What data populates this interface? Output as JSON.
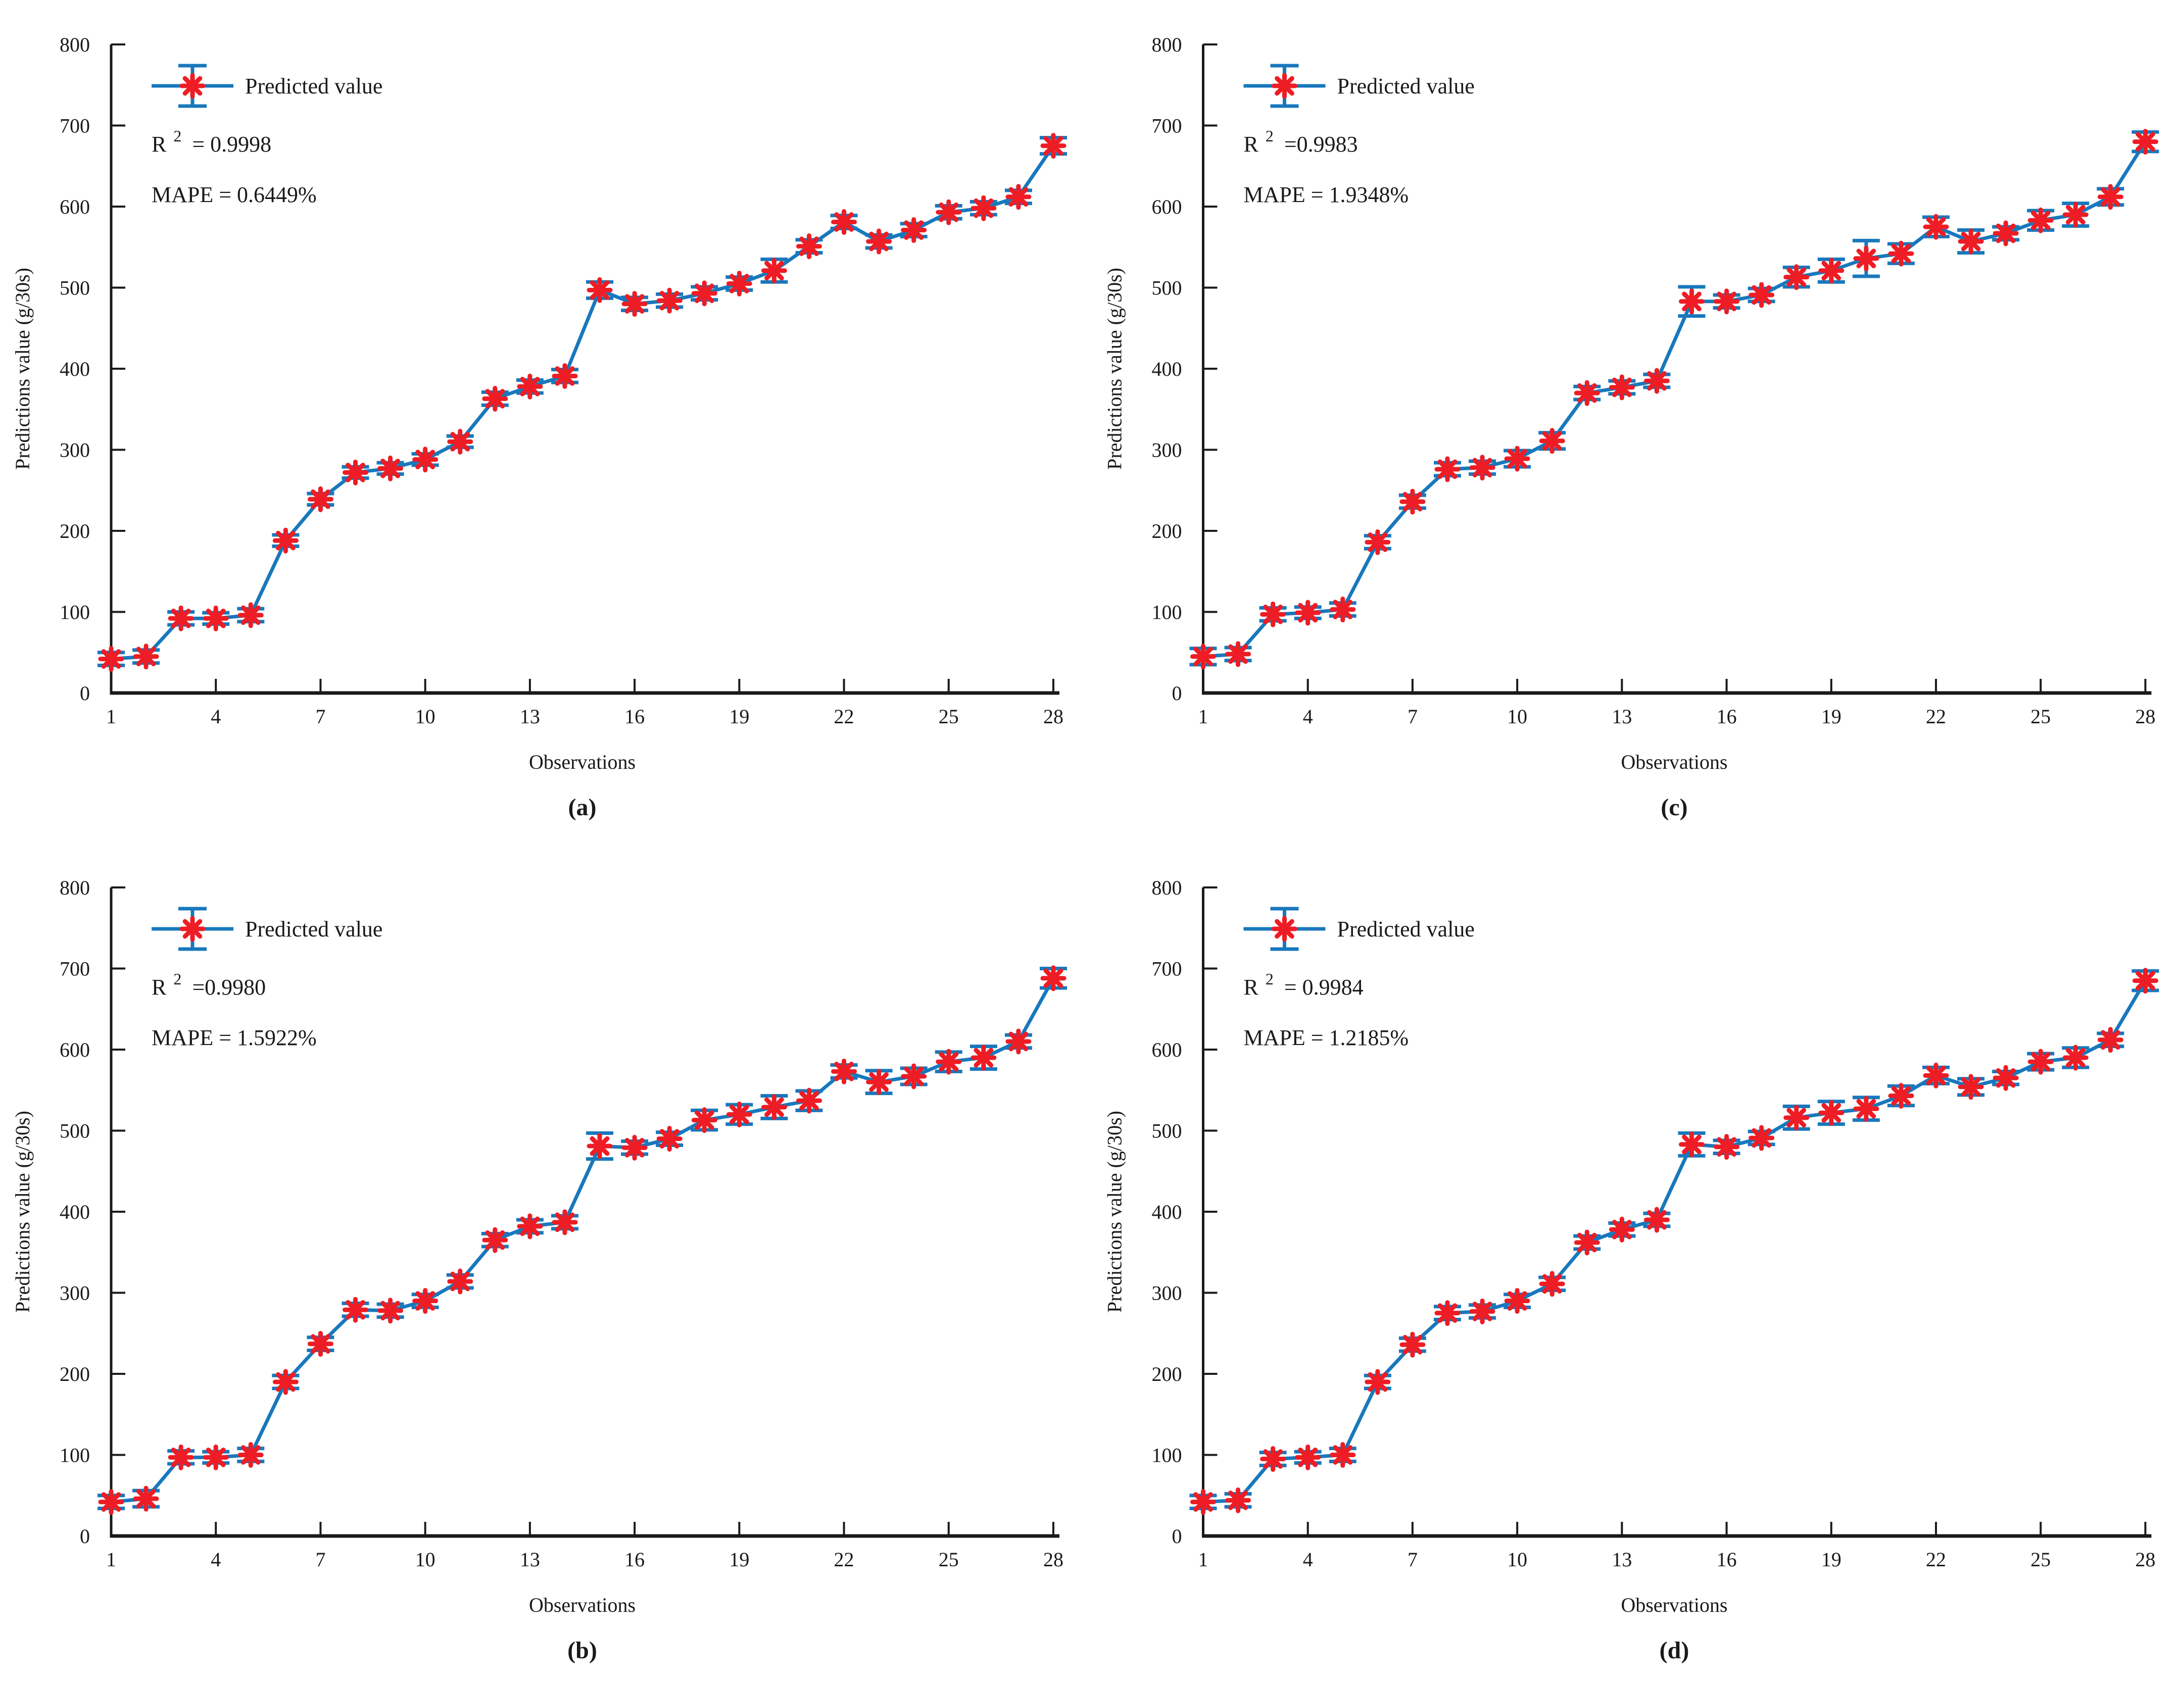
{
  "page": {
    "background": "#ffffff"
  },
  "colors": {
    "line_blue": "#1878bc",
    "marker_red": "#ee1c24",
    "axis_black": "#1a1a1a",
    "text_black": "#1a1a1a"
  },
  "chart_data": [
    {
      "type": "line",
      "panel_label": "(a)",
      "legend": "Predicted value",
      "r2_prefix": "R",
      "r2_sup": "2",
      "r2_suffix": " = 0.9998",
      "mape": "MAPE = 0.6449%",
      "xlabel": "Observations",
      "ylabel": "Predictions value (g/30s)",
      "xlim": [
        1,
        28
      ],
      "ylim": [
        0,
        800
      ],
      "x_ticks": [
        1,
        4,
        7,
        10,
        13,
        16,
        19,
        22,
        25,
        28
      ],
      "y_ticks": [
        0,
        100,
        200,
        300,
        400,
        500,
        600,
        700,
        800
      ],
      "x": [
        1,
        2,
        3,
        4,
        5,
        6,
        7,
        8,
        9,
        10,
        11,
        12,
        13,
        14,
        15,
        16,
        17,
        18,
        19,
        20,
        21,
        22,
        23,
        24,
        25,
        26,
        27,
        28
      ],
      "values": [
        42,
        45,
        92,
        92,
        96,
        188,
        239,
        272,
        277,
        288,
        310,
        363,
        378,
        391,
        497,
        480,
        484,
        493,
        505,
        521,
        551,
        581,
        557,
        571,
        593,
        598,
        612,
        675
      ],
      "errors": [
        8,
        8,
        8,
        7,
        8,
        7,
        7,
        7,
        7,
        7,
        7,
        8,
        8,
        8,
        10,
        8,
        8,
        8,
        8,
        14,
        8,
        8,
        8,
        8,
        8,
        8,
        8,
        10
      ]
    },
    {
      "type": "line",
      "panel_label": "(c)",
      "legend": "Predicted value",
      "r2_prefix": "R",
      "r2_sup": "2",
      "r2_suffix": " =0.9983",
      "mape": "MAPE = 1.9348%",
      "xlabel": "Observations",
      "ylabel": "Predictions value (g/30s)",
      "xlim": [
        1,
        28
      ],
      "ylim": [
        0,
        800
      ],
      "x_ticks": [
        1,
        4,
        7,
        10,
        13,
        16,
        19,
        22,
        25,
        28
      ],
      "y_ticks": [
        0,
        100,
        200,
        300,
        400,
        500,
        600,
        700,
        800
      ],
      "x": [
        1,
        2,
        3,
        4,
        5,
        6,
        7,
        8,
        9,
        10,
        11,
        12,
        13,
        14,
        15,
        16,
        17,
        18,
        19,
        20,
        21,
        22,
        23,
        24,
        25,
        26,
        27,
        28
      ],
      "values": [
        45,
        48,
        97,
        99,
        103,
        186,
        236,
        276,
        278,
        289,
        311,
        370,
        377,
        385,
        483,
        483,
        491,
        513,
        521,
        536,
        542,
        575,
        557,
        567,
        583,
        590,
        612,
        680
      ],
      "errors": [
        10,
        8,
        8,
        7,
        8,
        8,
        8,
        8,
        8,
        10,
        10,
        8,
        8,
        8,
        18,
        8,
        8,
        12,
        14,
        22,
        12,
        12,
        14,
        8,
        12,
        14,
        10,
        12
      ]
    },
    {
      "type": "line",
      "panel_label": "(b)",
      "legend": "Predicted value",
      "r2_prefix": "R",
      "r2_sup": "2",
      "r2_suffix": " =0.9980",
      "mape": "MAPE = 1.5922%",
      "xlabel": "Observations",
      "ylabel": "Predictions value (g/30s)",
      "xlim": [
        1,
        28
      ],
      "ylim": [
        0,
        800
      ],
      "x_ticks": [
        1,
        4,
        7,
        10,
        13,
        16,
        19,
        22,
        25,
        28
      ],
      "y_ticks": [
        0,
        100,
        200,
        300,
        400,
        500,
        600,
        700,
        800
      ],
      "x": [
        1,
        2,
        3,
        4,
        5,
        6,
        7,
        8,
        9,
        10,
        11,
        12,
        13,
        14,
        15,
        16,
        17,
        18,
        19,
        20,
        21,
        22,
        23,
        24,
        25,
        26,
        27,
        28
      ],
      "values": [
        42,
        46,
        97,
        97,
        100,
        190,
        237,
        279,
        278,
        290,
        314,
        365,
        382,
        387,
        481,
        479,
        490,
        513,
        520,
        529,
        537,
        573,
        560,
        567,
        585,
        590,
        610,
        688
      ],
      "errors": [
        8,
        10,
        8,
        7,
        8,
        8,
        8,
        8,
        8,
        8,
        8,
        8,
        8,
        8,
        16,
        8,
        8,
        12,
        12,
        14,
        12,
        8,
        14,
        10,
        12,
        14,
        8,
        12
      ]
    },
    {
      "type": "line",
      "panel_label": "(d)",
      "legend": "Predicted value",
      "r2_prefix": "R",
      "r2_sup": "2",
      "r2_suffix": " = 0.9984",
      "mape": "MAPE = 1.2185%",
      "xlabel": "Observations",
      "ylabel": "Predictions value (g/30s)",
      "xlim": [
        1,
        28
      ],
      "ylim": [
        0,
        800
      ],
      "x_ticks": [
        1,
        4,
        7,
        10,
        13,
        16,
        19,
        22,
        25,
        28
      ],
      "y_ticks": [
        0,
        100,
        200,
        300,
        400,
        500,
        600,
        700,
        800
      ],
      "x": [
        1,
        2,
        3,
        4,
        5,
        6,
        7,
        8,
        9,
        10,
        11,
        12,
        13,
        14,
        15,
        16,
        17,
        18,
        19,
        20,
        21,
        22,
        23,
        24,
        25,
        26,
        27,
        28
      ],
      "values": [
        42,
        44,
        95,
        97,
        100,
        190,
        236,
        275,
        277,
        290,
        311,
        362,
        378,
        390,
        483,
        480,
        491,
        516,
        522,
        527,
        543,
        568,
        554,
        565,
        585,
        590,
        612,
        685
      ],
      "errors": [
        8,
        8,
        8,
        7,
        8,
        8,
        8,
        8,
        8,
        8,
        8,
        8,
        8,
        8,
        14,
        8,
        8,
        14,
        14,
        14,
        12,
        10,
        10,
        8,
        10,
        12,
        8,
        12
      ]
    }
  ]
}
